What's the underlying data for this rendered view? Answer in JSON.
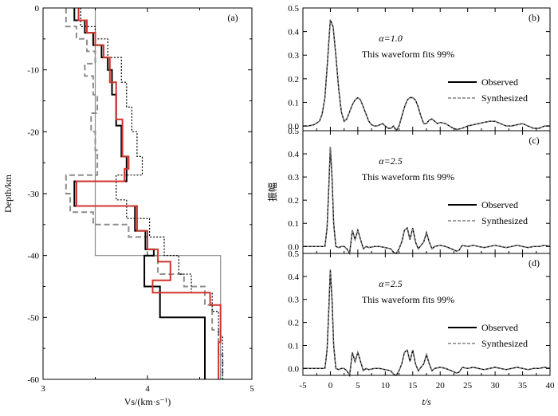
{
  "chart_data": [
    {
      "type": "line",
      "panel": "(a)",
      "xlabel": "Vs/(km·s⁻¹)",
      "ylabel": "Depth/km",
      "xlim": [
        3,
        5
      ],
      "ylim": [
        -60,
        0
      ],
      "xticks": [
        3,
        4,
        5
      ],
      "yticks": [
        0,
        -10,
        -20,
        -30,
        -40,
        -50,
        -60
      ],
      "series": [
        {
          "style": "initial-thin-gray",
          "x": [
            3.5,
            3.5,
            4.7,
            4.7
          ],
          "y": [
            0,
            -40,
            -40,
            -60
          ]
        },
        {
          "style": "dashed-gray",
          "x": [
            3.22,
            3.22,
            3.32,
            3.32,
            3.42,
            3.42,
            3.5,
            3.5,
            3.4,
            3.4,
            3.48,
            3.48,
            3.52,
            3.52,
            3.46,
            3.46,
            3.5,
            3.5,
            3.52,
            3.52,
            3.22,
            3.22,
            3.26,
            3.26,
            3.48,
            3.48,
            3.82,
            3.82,
            4.0,
            4.0,
            4.1,
            4.1,
            4.35,
            4.35,
            4.55,
            4.55,
            4.62,
            4.62,
            4.68,
            4.68,
            4.72,
            4.72
          ],
          "y": [
            0,
            -3,
            -3,
            -5,
            -5,
            -7,
            -7,
            -9,
            -9,
            -11,
            -11,
            -14,
            -14,
            -17,
            -17,
            -20,
            -20,
            -23,
            -23,
            -27,
            -27,
            -30,
            -30,
            -33,
            -33,
            -35,
            -35,
            -37,
            -37,
            -40,
            -40,
            -43,
            -43,
            -45,
            -45,
            -48,
            -48,
            -52,
            -52,
            -56,
            -56,
            -60
          ]
        },
        {
          "style": "dotted",
          "x": [
            3.36,
            3.36,
            3.5,
            3.5,
            3.62,
            3.62,
            3.75,
            3.75,
            3.8,
            3.8,
            3.85,
            3.85,
            3.9,
            3.9,
            3.95,
            3.95,
            3.7,
            3.7,
            3.8,
            3.8,
            4.02,
            4.02,
            4.16,
            4.16,
            4.3,
            4.3,
            4.42,
            4.42,
            4.62,
            4.62,
            4.68,
            4.68,
            4.72,
            4.72
          ],
          "y": [
            0,
            -3,
            -3,
            -5,
            -5,
            -8,
            -8,
            -12,
            -12,
            -16,
            -16,
            -20,
            -20,
            -24,
            -24,
            -27,
            -27,
            -31,
            -31,
            -34,
            -34,
            -37,
            -37,
            -40,
            -40,
            -43,
            -43,
            -46,
            -46,
            -49,
            -49,
            -53,
            -53,
            -60
          ]
        },
        {
          "style": "black-thick",
          "x": [
            3.3,
            3.3,
            3.4,
            3.4,
            3.48,
            3.48,
            3.56,
            3.56,
            3.62,
            3.62,
            3.66,
            3.66,
            3.7,
            3.7,
            3.75,
            3.75,
            3.8,
            3.8,
            3.3,
            3.3,
            3.88,
            3.88,
            3.98,
            3.98,
            4.06,
            4.06,
            3.97,
            3.97,
            4.12,
            4.12,
            4.55,
            4.55
          ],
          "y": [
            0,
            -2,
            -2,
            -4,
            -4,
            -6,
            -6,
            -8,
            -8,
            -10,
            -10,
            -14,
            -14,
            -19,
            -19,
            -24,
            -24,
            -28,
            -28,
            -32,
            -32,
            -36,
            -36,
            -39,
            -39,
            -40,
            -40,
            -45,
            -45,
            -50,
            -50,
            -60
          ]
        },
        {
          "style": "red",
          "x": [
            3.34,
            3.34,
            3.42,
            3.42,
            3.5,
            3.5,
            3.58,
            3.58,
            3.64,
            3.64,
            3.7,
            3.7,
            3.76,
            3.76,
            3.82,
            3.82,
            3.78,
            3.78,
            3.32,
            3.32,
            3.9,
            3.9,
            4.0,
            4.0,
            4.1,
            4.1,
            4.22,
            4.22,
            4.05,
            4.05,
            4.6,
            4.6,
            4.7,
            4.7,
            4.68,
            4.68
          ],
          "y": [
            0,
            -2,
            -2,
            -4,
            -4,
            -6,
            -6,
            -8,
            -8,
            -12,
            -12,
            -18,
            -18,
            -24,
            -24,
            -26,
            -26,
            -28,
            -28,
            -32,
            -32,
            -36,
            -36,
            -39,
            -39,
            -41,
            -41,
            -44,
            -44,
            -46,
            -46,
            -48,
            -48,
            -54,
            -54,
            -60
          ]
        }
      ]
    },
    {
      "type": "line",
      "panel": "(b)",
      "alpha_label": "α=1.0",
      "fit_label": "This waveform fits 99%",
      "xlim": [
        -5,
        40
      ],
      "ylim": [
        -0.02,
        0.5
      ],
      "xticks": [
        -5,
        0,
        5,
        10,
        15,
        20,
        25,
        30,
        35,
        40
      ],
      "yticks": [
        0.0,
        0.1,
        0.2,
        0.3,
        0.4,
        0.5
      ],
      "ytick_labels": [
        "0.0",
        "0.1",
        "0.2",
        "0.3",
        "0.4",
        "0.5"
      ],
      "legend": [
        "Observed",
        "Synthesized"
      ],
      "x": [
        -5,
        -4,
        -3,
        -2,
        -1.5,
        -1,
        -0.5,
        0,
        0.5,
        1,
        1.5,
        2,
        2.5,
        3,
        3.5,
        4,
        4.5,
        5,
        5.5,
        6,
        6.5,
        7,
        7.5,
        8,
        8.5,
        9,
        9.5,
        10,
        10.5,
        11,
        11.5,
        12,
        12.5,
        13,
        13.5,
        14,
        14.5,
        15,
        15.5,
        16,
        16.5,
        17,
        17.5,
        18,
        18.5,
        19,
        19.5,
        20,
        21,
        22,
        23,
        24,
        25,
        26,
        27,
        28,
        29,
        30,
        31,
        32,
        33,
        34,
        35,
        36,
        37,
        38,
        39,
        40
      ],
      "values": [
        0.0,
        0.0,
        0.005,
        0.02,
        0.05,
        0.12,
        0.28,
        0.45,
        0.42,
        0.3,
        0.16,
        0.06,
        0.02,
        0.03,
        0.06,
        0.09,
        0.11,
        0.12,
        0.11,
        0.08,
        0.05,
        0.02,
        0.005,
        0.0,
        0.0,
        0.005,
        0.01,
        0.0,
        -0.01,
        -0.01,
        0.0,
        -0.02,
        0.0,
        0.04,
        0.08,
        0.11,
        0.12,
        0.12,
        0.11,
        0.08,
        0.04,
        0.01,
        0.01,
        0.025,
        0.03,
        0.02,
        0.01,
        0.015,
        0.01,
        -0.005,
        -0.015,
        -0.01,
        0.0,
        0.005,
        0.01,
        0.015,
        0.02,
        0.02,
        0.01,
        0.0,
        0.0,
        0.005,
        0.01,
        0.0,
        -0.01,
        -0.01,
        0.0,
        0.0
      ]
    },
    {
      "type": "line",
      "panel": "(c)",
      "alpha_label": "α=2.5",
      "fit_label": "This waveform fits 99%",
      "xlim": [
        -5,
        40
      ],
      "ylim": [
        -0.03,
        0.5
      ],
      "xticks": [
        -5,
        0,
        5,
        10,
        15,
        20,
        25,
        30,
        35,
        40
      ],
      "yticks": [
        0.0,
        0.1,
        0.2,
        0.3,
        0.4,
        0.5
      ],
      "ytick_labels": [
        "0.0",
        "0.1",
        "0.2",
        "0.3",
        "0.4",
        "0.5"
      ],
      "legend": [
        "Observed",
        "Synthesized"
      ],
      "x": [
        -5,
        -3,
        -1,
        -0.6,
        -0.3,
        0,
        0.3,
        0.6,
        1,
        1.5,
        2,
        2.5,
        3,
        3.5,
        4,
        4.5,
        5,
        5.5,
        6,
        6.5,
        7,
        8,
        9,
        10,
        11,
        11.5,
        12,
        12.5,
        13,
        13.5,
        14,
        14.5,
        15,
        15.5,
        16,
        17,
        17.5,
        18,
        18.5,
        19,
        20,
        21,
        22,
        23,
        23.5,
        24,
        25,
        26,
        27,
        28,
        29,
        30,
        31,
        32,
        33,
        34,
        35,
        36,
        37,
        38,
        39,
        40
      ],
      "values": [
        0.0,
        0.0,
        0.0,
        0.08,
        0.25,
        0.43,
        0.3,
        0.1,
        0.0,
        -0.005,
        0.0,
        0.0,
        -0.01,
        -0.03,
        0.07,
        0.03,
        0.07,
        0.03,
        -0.01,
        0.0,
        -0.005,
        0.0,
        0.0,
        -0.005,
        -0.01,
        -0.025,
        -0.03,
        -0.01,
        0.02,
        0.07,
        0.08,
        0.03,
        0.08,
        0.02,
        -0.01,
        0.02,
        0.06,
        0.02,
        -0.01,
        0.0,
        0.005,
        0.0,
        -0.01,
        -0.02,
        -0.015,
        0.005,
        0.0,
        0.005,
        0.0,
        -0.005,
        0.0,
        0.005,
        0.0,
        -0.005,
        0.0,
        0.005,
        0.0,
        -0.005,
        0.0,
        0.0,
        0.005,
        0.0
      ]
    },
    {
      "type": "line",
      "panel": "(d)",
      "alpha_label": "α=2.5",
      "fit_label": "This waveform fits 99%",
      "xlim": [
        -5,
        40
      ],
      "ylim": [
        -0.03,
        0.5
      ],
      "xticks": [
        -5,
        0,
        5,
        10,
        15,
        20,
        25,
        30,
        35,
        40
      ],
      "xtick_labels": [
        "-5",
        "0",
        "5",
        "10",
        "15",
        "20",
        "25",
        "30",
        "35",
        "40"
      ],
      "yticks": [
        0.0,
        0.1,
        0.2,
        0.3,
        0.4,
        0.5
      ],
      "ytick_labels": [
        "0.0",
        "0.1",
        "0.2",
        "0.3",
        "0.4",
        "0.5"
      ],
      "xlabel": "t/s",
      "legend": [
        "Observed",
        "Synthesized"
      ],
      "x": [
        -5,
        -3,
        -1,
        -0.6,
        -0.3,
        0,
        0.3,
        0.6,
        1,
        1.5,
        2,
        2.5,
        3,
        3.5,
        4,
        4.5,
        5,
        5.5,
        6,
        6.5,
        7,
        8,
        9,
        10,
        11,
        11.5,
        12,
        12.5,
        13,
        13.5,
        14,
        14.5,
        15,
        15.5,
        16,
        17,
        17.5,
        18,
        18.5,
        19,
        20,
        21,
        22,
        23,
        23.5,
        24,
        25,
        26,
        27,
        28,
        29,
        30,
        31,
        32,
        33,
        34,
        35,
        36,
        37,
        38,
        39,
        40
      ],
      "values": [
        0.0,
        0.0,
        0.0,
        0.08,
        0.25,
        0.43,
        0.3,
        0.1,
        0.0,
        -0.005,
        0.0,
        0.0,
        -0.01,
        -0.03,
        0.07,
        0.03,
        0.07,
        0.03,
        -0.01,
        0.0,
        -0.005,
        0.0,
        0.0,
        -0.005,
        -0.01,
        -0.025,
        -0.03,
        -0.01,
        0.02,
        0.07,
        0.08,
        0.03,
        0.08,
        0.02,
        -0.01,
        0.02,
        0.06,
        0.02,
        -0.01,
        0.0,
        0.005,
        0.0,
        -0.01,
        -0.02,
        -0.015,
        0.005,
        0.0,
        0.005,
        0.0,
        -0.005,
        0.0,
        0.005,
        0.0,
        -0.005,
        0.0,
        0.005,
        0.0,
        -0.005,
        0.0,
        0.0,
        0.005,
        0.0
      ]
    }
  ],
  "shared_ylabel": "振幅",
  "colors": {
    "observed": "#000000",
    "synthesized": "#808080",
    "red": "#d0342c",
    "initial": "#8c8c8c",
    "dashed": "#8c8c8c",
    "dotted": "#000000"
  }
}
